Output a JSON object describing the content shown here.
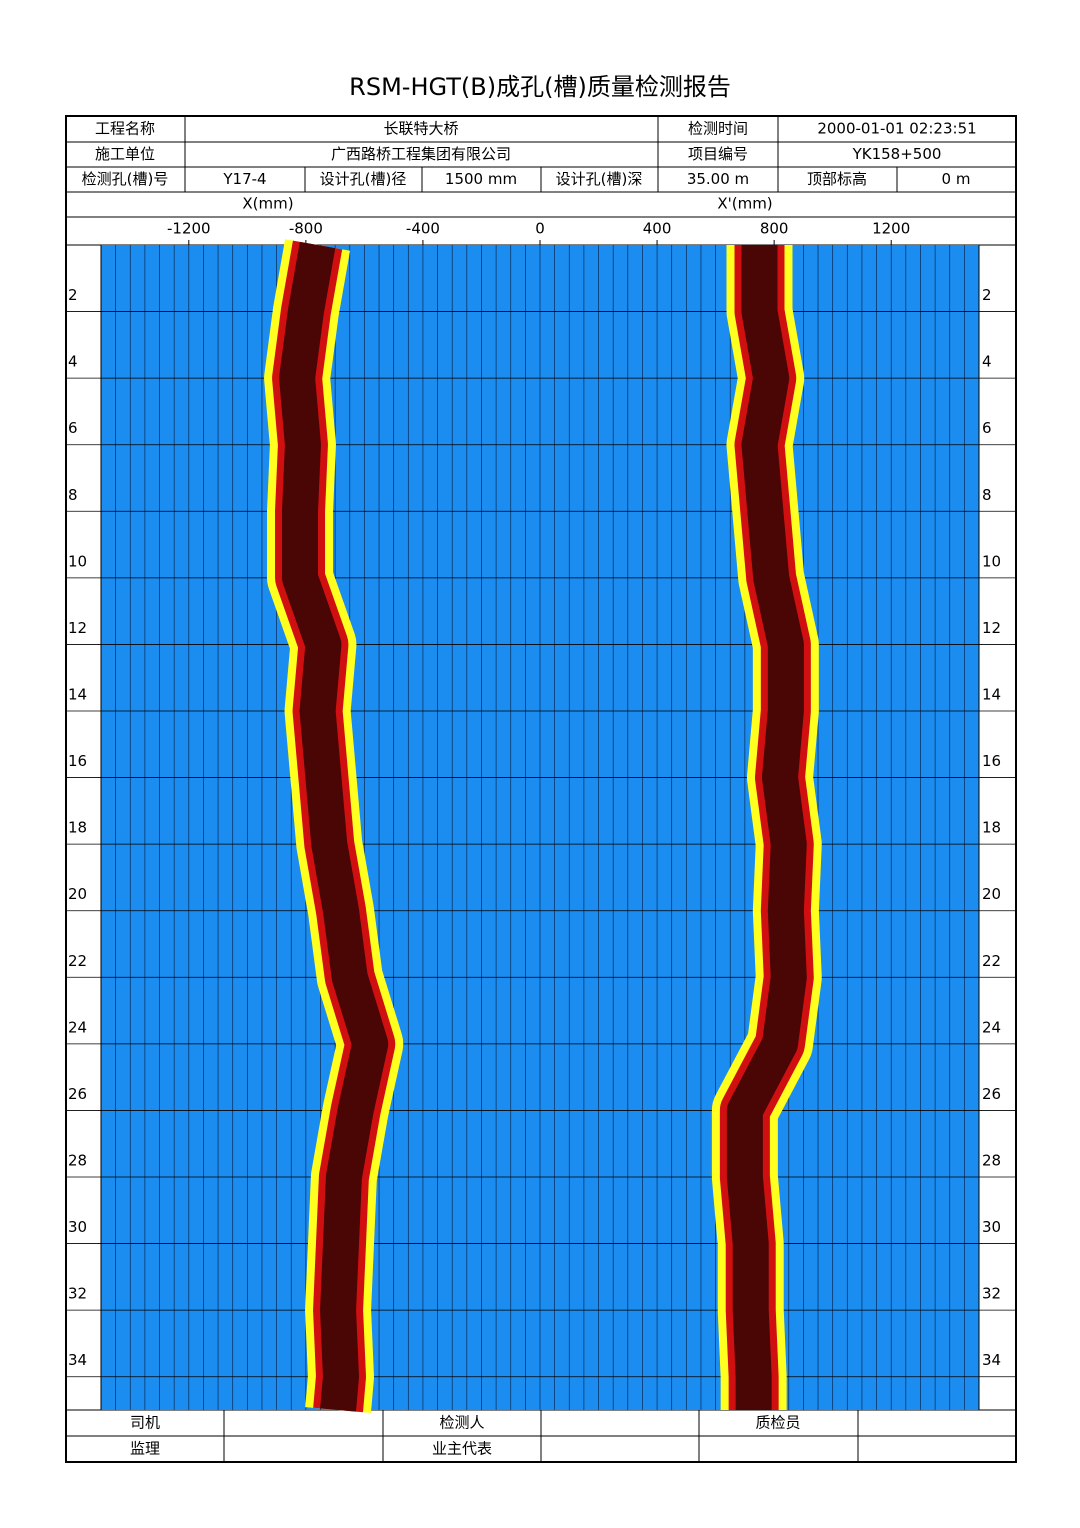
{
  "header": {
    "title": "RSM-HGT(B)成孔(槽)质量检测报告"
  },
  "info": {
    "rows": [
      [
        "工程名称",
        "长联特大桥",
        "检测时间",
        "2000-01-01 02:23:51"
      ],
      [
        "施工单位",
        "广西路桥工程集团有限公司",
        "项目编号",
        "YK158+500"
      ],
      [
        "检测孔(槽)号",
        "Y17-4",
        "设计孔(槽)径",
        "1500 mm",
        "设计孔(槽)深",
        "35.00 m",
        "顶部标高",
        "0 m"
      ]
    ]
  },
  "chart_data": {
    "type": "borehole",
    "x_label": "X(mm)",
    "x2_label": "X'(mm)",
    "xlim": [
      -1500,
      1500
    ],
    "xticks": [
      -1200,
      -800,
      -400,
      0,
      400,
      800,
      1200
    ],
    "grid_step": 50,
    "ylim": [
      0,
      35
    ],
    "yticks": [
      2,
      4,
      6,
      8,
      10,
      12,
      14,
      16,
      18,
      20,
      22,
      24,
      26,
      28,
      30,
      32,
      34
    ],
    "background": "#1b8cf0",
    "colors": [
      "#ffff20",
      "#d01010",
      "#4a0505"
    ],
    "walls": [
      {
        "depths": [
          0,
          2,
          4,
          6,
          8,
          10,
          12,
          14,
          16,
          18,
          20,
          22,
          24,
          26,
          28,
          30,
          32,
          34,
          35
        ],
        "values": [
          -760,
          -800,
          -830,
          -810,
          -820,
          -820,
          -740,
          -760,
          -740,
          -720,
          -680,
          -650,
          -580,
          -630,
          -670,
          -680,
          -690,
          -680,
          -690
        ]
      },
      {
        "depths": [
          0,
          2,
          4,
          6,
          8,
          10,
          12,
          14,
          16,
          18,
          20,
          22,
          24,
          26,
          28,
          30,
          32,
          34,
          35
        ],
        "values": [
          750,
          750,
          790,
          750,
          770,
          790,
          840,
          840,
          820,
          850,
          840,
          850,
          820,
          700,
          700,
          720,
          720,
          730,
          730
        ]
      }
    ]
  },
  "footer": {
    "rows": [
      [
        "司机",
        "检测人",
        "质检员"
      ],
      [
        "监理",
        "业主代表"
      ]
    ]
  }
}
